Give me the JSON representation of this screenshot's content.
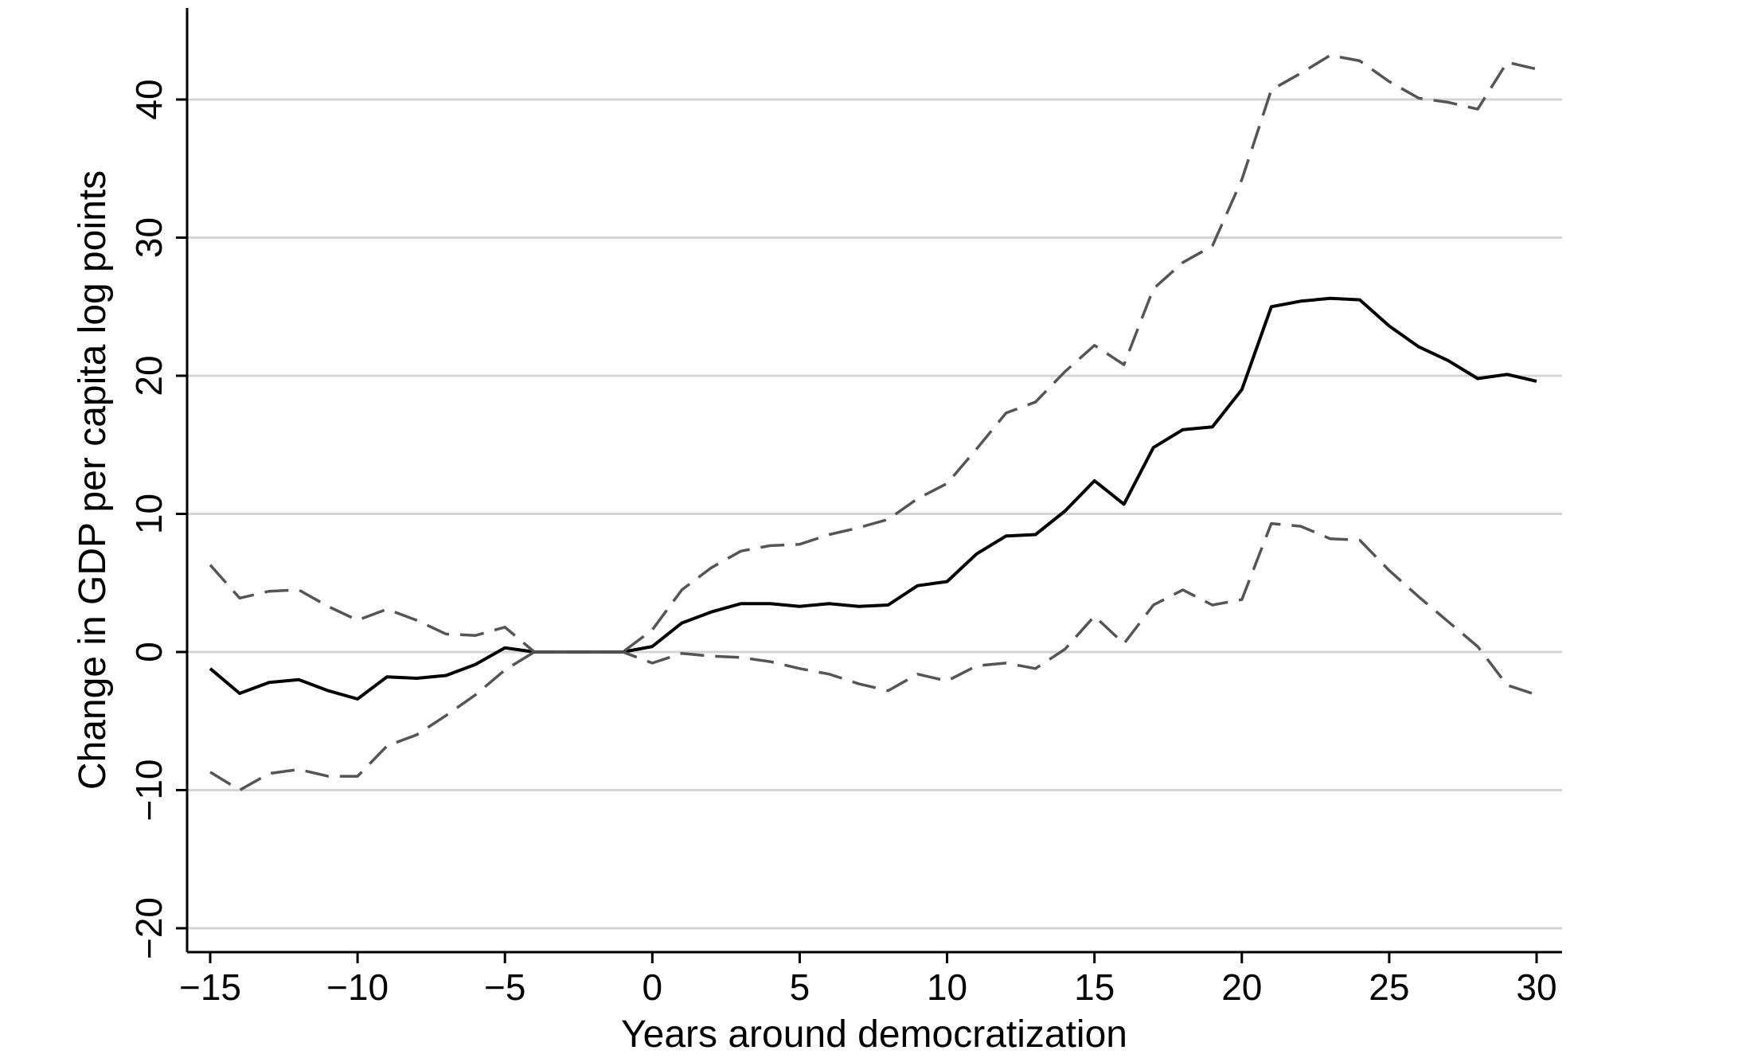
{
  "chart_data": {
    "type": "line",
    "title": "",
    "xlabel": "Years around democratization",
    "ylabel": "Change in GDP per capita log points",
    "xlim": [
      -15,
      30
    ],
    "ylim": [
      -22,
      46
    ],
    "xticks": [
      -15,
      -10,
      -5,
      0,
      5,
      10,
      15,
      20,
      25,
      30
    ],
    "yticks": [
      -20,
      -10,
      0,
      10,
      20,
      30,
      40
    ],
    "xtick_labels": [
      "−15",
      "−10",
      "−5",
      "0",
      "5",
      "10",
      "15",
      "20",
      "25",
      "30"
    ],
    "ytick_labels": [
      "−20",
      "−10",
      "0",
      "10",
      "20",
      "30",
      "40"
    ],
    "grid": "horizontal",
    "x": [
      -15,
      -14,
      -13,
      -12,
      -11,
      -10,
      -9,
      -8,
      -7,
      -6,
      -5,
      -4,
      -3,
      -2,
      -1,
      0,
      1,
      2,
      3,
      4,
      5,
      6,
      7,
      8,
      9,
      10,
      11,
      12,
      13,
      14,
      15,
      16,
      17,
      18,
      19,
      20,
      21,
      22,
      23,
      24,
      25,
      26,
      27,
      28,
      29,
      30
    ],
    "series": [
      {
        "name": "estimate",
        "style": "solid",
        "color": "#000000",
        "values": [
          -1.2,
          -3.0,
          -2.2,
          -2.0,
          -2.8,
          -3.4,
          -1.8,
          -1.9,
          -1.7,
          -0.9,
          0.3,
          0.0,
          0.0,
          0.0,
          0.0,
          0.4,
          2.1,
          2.9,
          3.5,
          3.5,
          3.3,
          3.5,
          3.3,
          3.4,
          4.8,
          5.1,
          7.1,
          8.4,
          8.5,
          10.2,
          12.4,
          10.7,
          14.8,
          16.1,
          16.3,
          19.0,
          25.0,
          25.4,
          25.6,
          25.5,
          23.6,
          22.1,
          21.1,
          19.8,
          20.1,
          19.6
        ]
      },
      {
        "name": "upper bound",
        "style": "dashed",
        "color": "#555555",
        "values": [
          6.3,
          3.9,
          4.4,
          4.5,
          3.3,
          2.3,
          3.1,
          2.3,
          1.3,
          1.2,
          1.8,
          0.0,
          0.0,
          0.0,
          0.0,
          1.6,
          4.5,
          6.1,
          7.3,
          7.7,
          7.8,
          8.5,
          9.0,
          9.6,
          11.1,
          12.2,
          14.7,
          17.3,
          18.1,
          20.3,
          22.2,
          20.8,
          26.3,
          28.2,
          29.4,
          34.2,
          40.7,
          41.9,
          43.2,
          42.8,
          41.3,
          40.1,
          39.8,
          39.3,
          42.7,
          42.2
        ]
      },
      {
        "name": "lower bound",
        "style": "dashed",
        "color": "#555555",
        "values": [
          -8.7,
          -10.0,
          -8.8,
          -8.5,
          -9.0,
          -9.0,
          -6.8,
          -6.0,
          -4.6,
          -3.1,
          -1.3,
          0.0,
          0.0,
          0.0,
          0.0,
          -0.8,
          -0.1,
          -0.3,
          -0.4,
          -0.7,
          -1.2,
          -1.6,
          -2.3,
          -2.8,
          -1.6,
          -2.1,
          -1.0,
          -0.8,
          -1.2,
          0.2,
          2.6,
          0.6,
          3.4,
          4.5,
          3.4,
          3.8,
          9.3,
          9.1,
          8.2,
          8.1,
          5.9,
          4.0,
          2.2,
          0.4,
          -2.4,
          -3.1
        ]
      }
    ]
  }
}
